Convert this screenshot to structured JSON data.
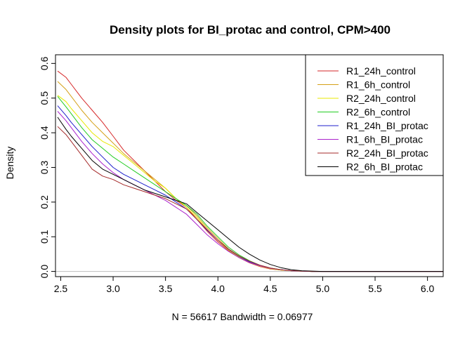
{
  "chart_data": {
    "type": "line",
    "title": "Density plots for BI_protac and control, CPM>400",
    "xlabel": "N = 56617   Bandwidth = 0.06977",
    "ylabel": "Density",
    "xlim": [
      2.45,
      6.15
    ],
    "ylim": [
      -0.015,
      0.625
    ],
    "xticks": [
      2.5,
      3.0,
      3.5,
      4.0,
      4.5,
      5.0,
      5.5,
      6.0
    ],
    "xtick_labels": [
      "2.5",
      "3.0",
      "3.5",
      "4.0",
      "4.5",
      "5.0",
      "5.5",
      "6.0"
    ],
    "yticks": [
      0.0,
      0.1,
      0.2,
      0.3,
      0.4,
      0.5,
      0.6
    ],
    "ytick_labels": [
      "0.0",
      "0.1",
      "0.2",
      "0.3",
      "0.4",
      "0.5",
      "0.6"
    ],
    "zero_line": true,
    "grid": false,
    "legend_position": "top-right",
    "series": [
      {
        "name": "R1_24h_control",
        "color": "#d62728",
        "x": [
          2.47,
          2.55,
          2.6,
          2.7,
          2.8,
          2.9,
          3.0,
          3.1,
          3.2,
          3.3,
          3.4,
          3.5,
          3.6,
          3.7,
          3.8,
          3.9,
          4.0,
          4.1,
          4.2,
          4.3,
          4.4,
          4.5,
          4.6,
          4.7,
          4.8,
          4.9,
          5.0,
          6.15
        ],
        "y": [
          0.578,
          0.56,
          0.54,
          0.5,
          0.465,
          0.43,
          0.39,
          0.35,
          0.32,
          0.29,
          0.26,
          0.23,
          0.205,
          0.185,
          0.15,
          0.115,
          0.085,
          0.06,
          0.04,
          0.025,
          0.014,
          0.007,
          0.004,
          0.002,
          0.001,
          0.0,
          0.0,
          0.0
        ]
      },
      {
        "name": "R1_6h_control",
        "color": "#d4a017",
        "x": [
          2.47,
          2.55,
          2.6,
          2.7,
          2.8,
          2.9,
          3.0,
          3.1,
          3.2,
          3.3,
          3.4,
          3.5,
          3.6,
          3.7,
          3.8,
          3.9,
          4.0,
          4.1,
          4.2,
          4.3,
          4.4,
          4.5,
          4.6,
          4.7,
          4.8,
          4.9,
          5.0,
          6.15
        ],
        "y": [
          0.548,
          0.525,
          0.505,
          0.465,
          0.43,
          0.4,
          0.37,
          0.34,
          0.315,
          0.29,
          0.265,
          0.24,
          0.21,
          0.19,
          0.16,
          0.125,
          0.095,
          0.065,
          0.045,
          0.028,
          0.016,
          0.008,
          0.004,
          0.002,
          0.001,
          0.0,
          0.0,
          0.0
        ]
      },
      {
        "name": "R2_24h_control",
        "color": "#e8e800",
        "x": [
          2.47,
          2.55,
          2.6,
          2.7,
          2.8,
          2.9,
          3.0,
          3.1,
          3.2,
          3.3,
          3.4,
          3.5,
          3.6,
          3.7,
          3.8,
          3.9,
          4.0,
          4.1,
          4.2,
          4.3,
          4.4,
          4.5,
          4.6,
          4.7,
          4.8,
          4.9,
          5.0,
          6.15
        ],
        "y": [
          0.508,
          0.49,
          0.47,
          0.435,
          0.4,
          0.375,
          0.36,
          0.335,
          0.31,
          0.285,
          0.26,
          0.24,
          0.21,
          0.185,
          0.155,
          0.12,
          0.09,
          0.062,
          0.042,
          0.026,
          0.015,
          0.008,
          0.004,
          0.002,
          0.001,
          0.0,
          0.0,
          0.0
        ]
      },
      {
        "name": "R2_6h_control",
        "color": "#22cc22",
        "x": [
          2.47,
          2.55,
          2.6,
          2.7,
          2.8,
          2.9,
          3.0,
          3.1,
          3.2,
          3.3,
          3.4,
          3.5,
          3.6,
          3.7,
          3.8,
          3.9,
          4.0,
          4.1,
          4.2,
          4.3,
          4.4,
          4.5,
          4.6,
          4.7,
          4.8,
          4.9,
          5.0,
          6.15
        ],
        "y": [
          0.505,
          0.475,
          0.455,
          0.415,
          0.38,
          0.355,
          0.33,
          0.31,
          0.29,
          0.27,
          0.25,
          0.23,
          0.21,
          0.19,
          0.165,
          0.13,
          0.1,
          0.07,
          0.048,
          0.031,
          0.018,
          0.01,
          0.005,
          0.002,
          0.001,
          0.0,
          0.0,
          0.0
        ]
      },
      {
        "name": "R1_24h_BI_protac",
        "color": "#1f1fcc",
        "x": [
          2.47,
          2.55,
          2.6,
          2.7,
          2.8,
          2.9,
          3.0,
          3.1,
          3.2,
          3.3,
          3.4,
          3.5,
          3.6,
          3.7,
          3.8,
          3.9,
          4.0,
          4.1,
          4.2,
          4.3,
          4.4,
          4.5,
          4.6,
          4.7,
          4.8,
          4.9,
          5.0,
          6.15
        ],
        "y": [
          0.478,
          0.45,
          0.43,
          0.395,
          0.36,
          0.33,
          0.3,
          0.28,
          0.265,
          0.25,
          0.235,
          0.22,
          0.2,
          0.18,
          0.15,
          0.118,
          0.09,
          0.064,
          0.044,
          0.028,
          0.017,
          0.009,
          0.005,
          0.002,
          0.001,
          0.0,
          0.0,
          0.0
        ]
      },
      {
        "name": "R1_6h_BI_protac",
        "color": "#aa22cc",
        "x": [
          2.47,
          2.55,
          2.6,
          2.7,
          2.8,
          2.9,
          3.0,
          3.1,
          3.2,
          3.3,
          3.4,
          3.5,
          3.6,
          3.7,
          3.8,
          3.9,
          4.0,
          4.1,
          4.2,
          4.3,
          4.4,
          4.5,
          4.6,
          4.7,
          4.8,
          4.9,
          5.0,
          6.15
        ],
        "y": [
          0.462,
          0.435,
          0.415,
          0.375,
          0.34,
          0.31,
          0.285,
          0.265,
          0.25,
          0.235,
          0.22,
          0.205,
          0.185,
          0.165,
          0.135,
          0.105,
          0.08,
          0.058,
          0.04,
          0.026,
          0.016,
          0.009,
          0.005,
          0.002,
          0.001,
          0.0,
          0.0,
          0.0
        ]
      },
      {
        "name": "R2_24h_BI_protac",
        "color": "#a52a2a",
        "x": [
          2.47,
          2.55,
          2.6,
          2.7,
          2.8,
          2.9,
          3.0,
          3.1,
          3.2,
          3.3,
          3.4,
          3.5,
          3.6,
          3.7,
          3.8,
          3.9,
          4.0,
          4.1,
          4.2,
          4.3,
          4.4,
          4.5,
          4.6,
          4.7,
          4.8,
          4.9,
          5.0,
          6.15
        ],
        "y": [
          0.418,
          0.395,
          0.375,
          0.335,
          0.295,
          0.275,
          0.265,
          0.25,
          0.24,
          0.23,
          0.22,
          0.21,
          0.195,
          0.18,
          0.15,
          0.12,
          0.09,
          0.065,
          0.045,
          0.03,
          0.018,
          0.01,
          0.005,
          0.002,
          0.001,
          0.0,
          0.0,
          0.0
        ]
      },
      {
        "name": "R2_6h_BI_protac",
        "color": "#000000",
        "x": [
          2.47,
          2.55,
          2.6,
          2.7,
          2.8,
          2.9,
          3.0,
          3.1,
          3.2,
          3.3,
          3.4,
          3.5,
          3.6,
          3.7,
          3.8,
          3.9,
          4.0,
          4.1,
          4.2,
          4.3,
          4.4,
          4.5,
          4.6,
          4.7,
          4.8,
          4.9,
          5.0,
          6.15
        ],
        "y": [
          0.445,
          0.41,
          0.39,
          0.355,
          0.32,
          0.295,
          0.28,
          0.265,
          0.25,
          0.235,
          0.225,
          0.215,
          0.205,
          0.195,
          0.17,
          0.145,
          0.12,
          0.095,
          0.07,
          0.05,
          0.033,
          0.02,
          0.011,
          0.005,
          0.002,
          0.001,
          0.0,
          0.0
        ]
      }
    ]
  }
}
